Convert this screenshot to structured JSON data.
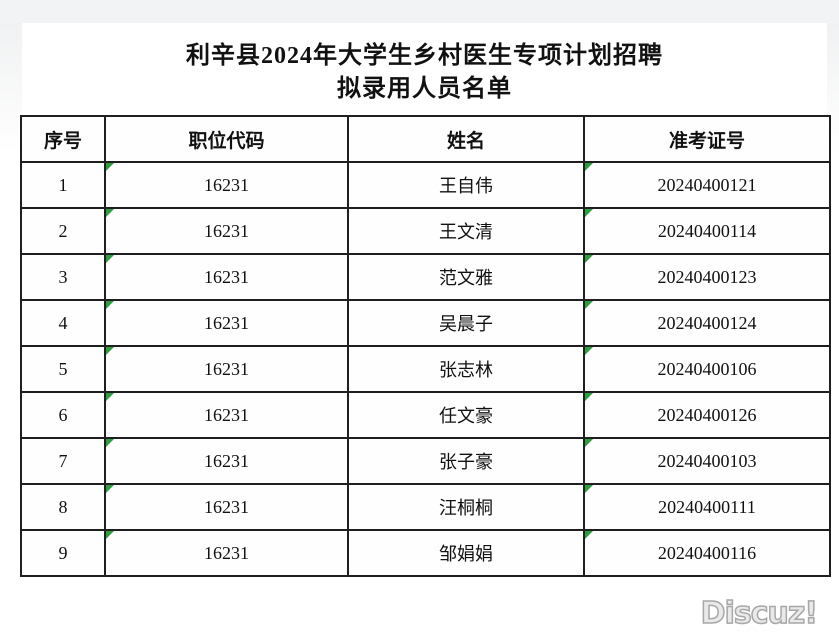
{
  "title": {
    "line1": "利辛县2024年大学生乡村医生专项计划招聘",
    "line2": "拟录用人员名单"
  },
  "table": {
    "headers": [
      "序号",
      "职位代码",
      "姓名",
      "准考证号"
    ],
    "rows": [
      {
        "seq": "1",
        "job_code": "16231",
        "name": "王自伟",
        "ticket_no": "20240400121"
      },
      {
        "seq": "2",
        "job_code": "16231",
        "name": "王文清",
        "ticket_no": "20240400114"
      },
      {
        "seq": "3",
        "job_code": "16231",
        "name": "范文雅",
        "ticket_no": "20240400123"
      },
      {
        "seq": "4",
        "job_code": "16231",
        "name": "吴晨子",
        "ticket_no": "20240400124"
      },
      {
        "seq": "5",
        "job_code": "16231",
        "name": "张志林",
        "ticket_no": "20240400106"
      },
      {
        "seq": "6",
        "job_code": "16231",
        "name": "任文豪",
        "ticket_no": "20240400126"
      },
      {
        "seq": "7",
        "job_code": "16231",
        "name": "张子豪",
        "ticket_no": "20240400103"
      },
      {
        "seq": "8",
        "job_code": "16231",
        "name": "汪桐桐",
        "ticket_no": "20240400111"
      },
      {
        "seq": "9",
        "job_code": "16231",
        "name": "邹娟娟",
        "ticket_no": "20240400116"
      }
    ],
    "error_triangle_columns": [
      "job_code",
      "ticket_no"
    ]
  },
  "watermark": {
    "text": "Discuz!"
  },
  "colors": {
    "border": "#1f1f1f",
    "triangle": "#2f9e41",
    "watermark_fill": "#e9e9e9",
    "watermark_stroke": "#a8a8a8",
    "margin_gray": "#f2f3f4"
  }
}
